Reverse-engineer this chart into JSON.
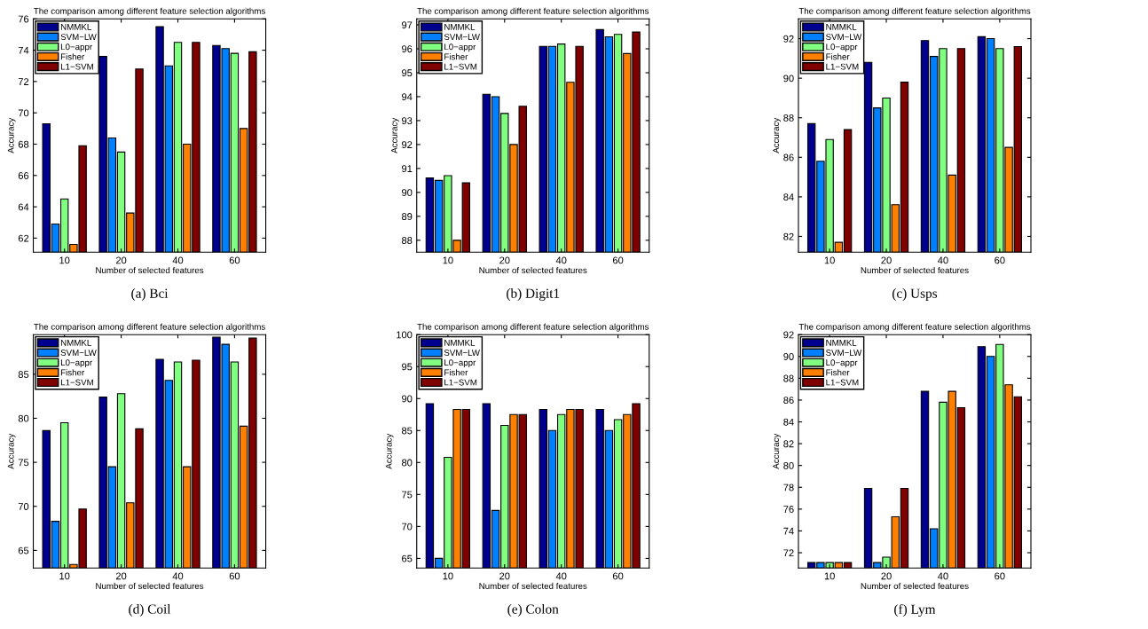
{
  "chart_data": [
    {
      "type": "bar",
      "title": "The comparison among different feature selection algorithms",
      "xlabel": "Number of selected features",
      "ylabel": "Accuracy",
      "categories": [
        "10",
        "20",
        "40",
        "60"
      ],
      "ylim": [
        61.1,
        76
      ],
      "yticks": [
        62,
        64,
        66,
        68,
        70,
        72,
        74,
        76
      ],
      "legend": "top left",
      "annotations": [
        "(a) Bci"
      ],
      "series": [
        {
          "name": "NMMKL",
          "color": "#00008f",
          "values": [
            69.3,
            73.6,
            75.5,
            74.3
          ]
        },
        {
          "name": "SVM−LW",
          "color": "#0080ff",
          "values": [
            62.9,
            68.4,
            73.0,
            74.1
          ]
        },
        {
          "name": "L0−appr",
          "color": "#80ff80",
          "values": [
            64.5,
            67.5,
            74.5,
            73.8
          ]
        },
        {
          "name": "Fisher",
          "color": "#ff8000",
          "values": [
            61.6,
            63.6,
            68.0,
            69.0
          ]
        },
        {
          "name": "L1−SVM",
          "color": "#800000",
          "values": [
            67.9,
            72.8,
            74.5,
            73.9
          ]
        }
      ]
    },
    {
      "type": "bar",
      "title": "The comparison among different feature selection algorithms",
      "xlabel": "Number of selected features",
      "ylabel": "Accuracy",
      "categories": [
        "10",
        "20",
        "40",
        "60"
      ],
      "ylim": [
        87.5,
        97.25
      ],
      "yticks": [
        88,
        89,
        90,
        91,
        92,
        93,
        94,
        95,
        96,
        97
      ],
      "legend": "top left",
      "annotations": [
        "(b) Digit1"
      ],
      "series": [
        {
          "name": "NMMKL",
          "color": "#00008f",
          "values": [
            90.6,
            94.1,
            96.1,
            96.8
          ]
        },
        {
          "name": "SVM−LW",
          "color": "#0080ff",
          "values": [
            90.5,
            94.0,
            96.1,
            96.5
          ]
        },
        {
          "name": "L0−appr",
          "color": "#80ff80",
          "values": [
            90.7,
            93.3,
            96.2,
            96.6
          ]
        },
        {
          "name": "Fisher",
          "color": "#ff8000",
          "values": [
            88.0,
            92.0,
            94.6,
            95.8
          ]
        },
        {
          "name": "L1−SVM",
          "color": "#800000",
          "values": [
            90.4,
            93.6,
            96.1,
            96.7
          ]
        }
      ]
    },
    {
      "type": "bar",
      "title": "The comparison among different feature selection algorithms",
      "xlabel": "Number of selected features",
      "ylabel": "Accuracy",
      "categories": [
        "10",
        "20",
        "40",
        "60"
      ],
      "ylim": [
        81.2,
        93
      ],
      "yticks": [
        82,
        84,
        86,
        88,
        90,
        92
      ],
      "legend": "top left",
      "annotations": [
        "(c) Usps"
      ],
      "series": [
        {
          "name": "NMMKL",
          "color": "#00008f",
          "values": [
            87.7,
            90.8,
            91.9,
            92.1
          ]
        },
        {
          "name": "SVM−LW",
          "color": "#0080ff",
          "values": [
            85.8,
            88.5,
            91.1,
            92.0
          ]
        },
        {
          "name": "L0−appr",
          "color": "#80ff80",
          "values": [
            86.9,
            89.0,
            91.5,
            91.5
          ]
        },
        {
          "name": "Fisher",
          "color": "#ff8000",
          "values": [
            81.7,
            83.6,
            85.1,
            86.5
          ]
        },
        {
          "name": "L1−SVM",
          "color": "#800000",
          "values": [
            87.4,
            89.8,
            91.5,
            91.6
          ]
        }
      ]
    },
    {
      "type": "bar",
      "title": "The comparison among different feature selection algorithms",
      "xlabel": "Number of selected features",
      "ylabel": "Accuracy",
      "categories": [
        "10",
        "20",
        "40",
        "60"
      ],
      "ylim": [
        63,
        89.5
      ],
      "yticks": [
        65,
        70,
        75,
        80,
        85
      ],
      "legend": "top left",
      "annotations": [
        "(d) Coil"
      ],
      "series": [
        {
          "name": "NMMKL",
          "color": "#00008f",
          "values": [
            78.6,
            82.4,
            86.7,
            89.2
          ]
        },
        {
          "name": "SVM−LW",
          "color": "#0080ff",
          "values": [
            68.3,
            74.5,
            84.3,
            88.4
          ]
        },
        {
          "name": "L0−appr",
          "color": "#80ff80",
          "values": [
            79.5,
            82.8,
            86.4,
            86.4
          ]
        },
        {
          "name": "Fisher",
          "color": "#ff8000",
          "values": [
            63.4,
            70.4,
            74.5,
            79.1
          ]
        },
        {
          "name": "L1−SVM",
          "color": "#800000",
          "values": [
            69.7,
            78.8,
            86.6,
            89.1
          ]
        }
      ]
    },
    {
      "type": "bar",
      "title": "The comparison among different feature selection algorithms",
      "xlabel": "Number of selected features",
      "ylabel": "Accuracy",
      "categories": [
        "10",
        "20",
        "40",
        "60"
      ],
      "ylim": [
        63.5,
        100
      ],
      "yticks": [
        65,
        70,
        75,
        80,
        85,
        90,
        95,
        100
      ],
      "legend": "top left",
      "annotations": [
        "(e) Colon"
      ],
      "series": [
        {
          "name": "NMMKL",
          "color": "#00008f",
          "values": [
            89.2,
            89.2,
            88.3,
            88.3
          ]
        },
        {
          "name": "SVM−LW",
          "color": "#0080ff",
          "values": [
            65.0,
            72.5,
            85.0,
            85.0
          ]
        },
        {
          "name": "L0−appr",
          "color": "#80ff80",
          "values": [
            80.8,
            85.8,
            87.5,
            86.7
          ]
        },
        {
          "name": "Fisher",
          "color": "#ff8000",
          "values": [
            88.3,
            87.5,
            88.3,
            87.5
          ]
        },
        {
          "name": "L1−SVM",
          "color": "#800000",
          "values": [
            88.3,
            87.5,
            88.3,
            89.2
          ]
        }
      ]
    },
    {
      "type": "bar",
      "title": "The comparison among different feature selection algorithms",
      "xlabel": "Number of selected features",
      "ylabel": "Accuracy",
      "categories": [
        "10",
        "20",
        "40",
        "60"
      ],
      "ylim": [
        70.6,
        92
      ],
      "yticks": [
        72,
        74,
        76,
        78,
        80,
        82,
        84,
        86,
        88,
        90,
        92
      ],
      "legend": "top left",
      "annotations": [
        "(f) Lym"
      ],
      "series": [
        {
          "name": "NMMKL",
          "color": "#00008f",
          "values": [
            71.1,
            77.9,
            86.8,
            90.9
          ]
        },
        {
          "name": "SVM−LW",
          "color": "#0080ff",
          "values": [
            71.1,
            71.1,
            74.2,
            90.0
          ]
        },
        {
          "name": "L0−appr",
          "color": "#80ff80",
          "values": [
            71.1,
            71.6,
            85.8,
            91.1
          ]
        },
        {
          "name": "Fisher",
          "color": "#ff8000",
          "values": [
            71.1,
            75.3,
            86.8,
            87.4
          ]
        },
        {
          "name": "L1−SVM",
          "color": "#800000",
          "values": [
            71.1,
            77.9,
            85.3,
            86.3
          ]
        }
      ]
    }
  ]
}
